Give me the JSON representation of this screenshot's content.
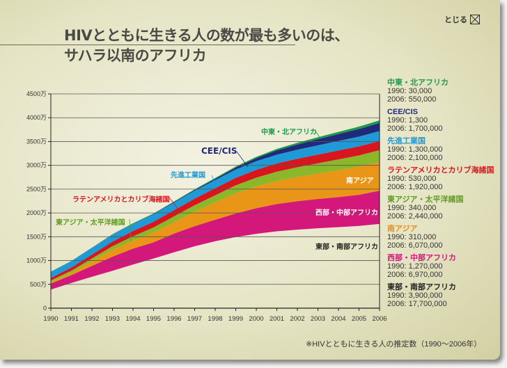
{
  "header": {
    "title_line1": "HIVとともに生きる人の数が最も多いのは、",
    "title_line2": "サハラ以南のアフリカ",
    "close_label": "とじる",
    "close_icon": "close-box-icon"
  },
  "footnote": "※HIVとともに生きる人の推定数（1990〜2006年）",
  "chart_data": {
    "type": "area",
    "stacked": true,
    "unit": "万",
    "x": [
      1990,
      1991,
      1992,
      1993,
      1994,
      1995,
      1996,
      1997,
      1998,
      1999,
      2000,
      2001,
      2002,
      2003,
      2004,
      2005,
      2006
    ],
    "ylim": [
      0,
      4500
    ],
    "yticks": [
      "0",
      "500万",
      "1000万",
      "1500万",
      "2000万",
      "2500万",
      "3000万",
      "3500万",
      "4000万",
      "4500万"
    ],
    "xticks": [
      "1990",
      "1991",
      "1992",
      "1993",
      "1994",
      "1995",
      "1996",
      "1997",
      "1998",
      "1999",
      "2000",
      "2001",
      "2002",
      "2003",
      "2004",
      "2005",
      "2006"
    ],
    "grid": true,
    "legend_position": "right",
    "series": [
      {
        "name": "東部・南部アフリカ",
        "color": "none",
        "label_color": "#222222",
        "inline_label": "東部・南部アフリカ",
        "legend": [
          "1990: 3,900,000",
          "2006: 17,700,000"
        ],
        "values": [
          390,
          529,
          660,
          786,
          917,
          1043,
          1174,
          1300,
          1406,
          1494,
          1562,
          1615,
          1649,
          1678,
          1703,
          1727,
          1770
        ]
      },
      {
        "name": "西部・中部アフリカ",
        "color": "#d4177a",
        "label_color": "#d4177a",
        "inline_label": "西部・中部アフリカ",
        "legend": [
          "1990: 1,270,000",
          "2006: 6,970,000"
        ],
        "values": [
          127,
          165,
          228,
          296,
          334,
          339,
          393,
          422,
          452,
          495,
          538,
          572,
          597,
          616,
          630,
          654,
          697
        ]
      },
      {
        "name": "南アジア",
        "color": "#e89518",
        "label_color": "#e8901a",
        "inline_label": "南アジア",
        "legend": [
          "1990: 310,000",
          "2006: 6,070,000"
        ],
        "values": [
          31,
          48,
          97,
          145,
          170,
          209,
          242,
          305,
          363,
          426,
          461,
          485,
          509,
          534,
          567,
          592,
          607
        ]
      },
      {
        "name": "東アジア・太平洋諸国",
        "color": "#8ab82a",
        "label_color": "#5f9a22",
        "inline_label": "東アジア・太平洋諸国",
        "legend": [
          "1990: 340,000",
          "2006: 2,440,000"
        ],
        "values": [
          34,
          45,
          60,
          75,
          90,
          105,
          120,
          135,
          150,
          165,
          180,
          195,
          205,
          215,
          225,
          235,
          244
        ]
      },
      {
        "name": "ラテンアメリカとカリブ海諸国",
        "color": "#d7161e",
        "label_color": "#d7161e",
        "inline_label": "ラテンアメリカとカリブ海諸国",
        "legend": [
          "1990: 530,000",
          "2006: 1,920,000"
        ],
        "values": [
          53,
          65,
          80,
          95,
          110,
          120,
          130,
          140,
          150,
          158,
          165,
          172,
          178,
          183,
          187,
          190,
          192
        ]
      },
      {
        "name": "先進工業国",
        "color": "#1e9ad6",
        "label_color": "#1e9ad6",
        "inline_label": "先進工業国",
        "legend": [
          "1990: 1,300,000",
          "2006: 2,100,000"
        ],
        "values": [
          130,
          135,
          140,
          145,
          150,
          155,
          160,
          165,
          170,
          175,
          180,
          185,
          190,
          195,
          200,
          205,
          210
        ]
      },
      {
        "name": "CEE/CIS",
        "color": "#1f2a7a",
        "label_color": "#1f2a7a",
        "inline_label": "CEE/CIS",
        "legend": [
          "1990: 1,300",
          "2006: 1,700,000"
        ],
        "values": [
          0.13,
          1,
          2,
          3,
          5,
          7,
          10,
          15,
          25,
          40,
          65,
          90,
          110,
          130,
          145,
          160,
          170
        ]
      },
      {
        "name": "中東・北アフリカ",
        "color": "#1a9a4a",
        "label_color": "#1a9a4a",
        "inline_label": "中東・北アフリカ",
        "legend": [
          "1990: 30,000",
          "2006: 550,000"
        ],
        "values": [
          3,
          4,
          5,
          7,
          9,
          11,
          13,
          15,
          18,
          22,
          26,
          30,
          35,
          40,
          45,
          50,
          55
        ]
      }
    ]
  }
}
